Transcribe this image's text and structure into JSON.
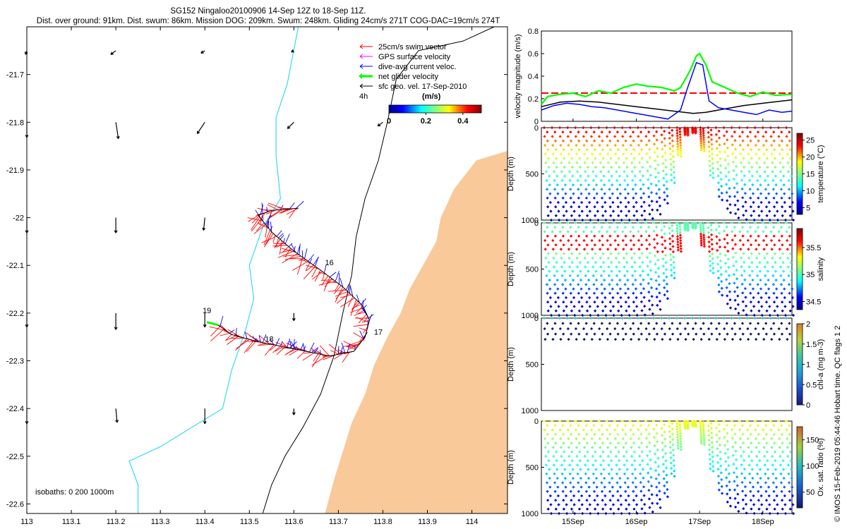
{
  "header": {
    "line1": "SG152 Ningaloo20100906 14-Sep 12Z to 18-Sep 11Z.",
    "line2": "Dist. over ground: 91km. Dist. swum: 86km. Mission DOG: 209km. Swum: 248km. Gliding 24cm/s 271T COG-DAC=19cm/s 274T"
  },
  "colors": {
    "land": "#f9c99a",
    "isobath_200": "#22d8f0",
    "isobath_1000": "#000000",
    "swim": "#ff0000",
    "gps": "#ff00ff",
    "dac": "#0000ff",
    "net": "#00ff00",
    "ref_line": "#ff0000",
    "speed_line": "#000000"
  },
  "chart_data": [
    {
      "type": "scatter",
      "title": "Glider track map",
      "x_ticks": [
        "113",
        "113.1",
        "113.2",
        "113.3",
        "113.4",
        "113.5",
        "113.6",
        "113.7",
        "113.8",
        "113.9",
        "114"
      ],
      "y_ticks": [
        "-21.7",
        "-21.8",
        "-21.9",
        "-22",
        "-22.1",
        "-22.2",
        "-22.3",
        "-22.4",
        "-22.5",
        "-22.6"
      ],
      "xlim": [
        113.0,
        114.08
      ],
      "ylim": [
        -22.62,
        -21.6
      ],
      "legend": [
        {
          "label": "25cm/s swim vector",
          "color": "swim"
        },
        {
          "label": "GPS surface velocity",
          "color": "gps"
        },
        {
          "label": "dive-avg current veloc.",
          "color": "dac"
        },
        {
          "label": "net glider velocity",
          "color": "net"
        },
        {
          "label": "sfc geo. vel. 17-Sep-2010",
          "color": "speed_line"
        }
      ],
      "legend_extra": "4h",
      "colorbar": {
        "label": "(m/s)",
        "ticks": [
          "0",
          "0.2",
          "0.4"
        ],
        "range": [
          0,
          0.5
        ]
      },
      "isobaths_text": "isobaths: 0   200  1000m",
      "day_labels": [
        {
          "text": "16",
          "lon": 113.67,
          "lat": -22.1
        },
        {
          "text": "17",
          "lon": 113.78,
          "lat": -22.245
        },
        {
          "text": "18",
          "lon": 113.535,
          "lat": -22.26
        },
        {
          "text": "19",
          "lon": 113.395,
          "lat": -22.2
        }
      ],
      "track": [
        {
          "lon": 113.61,
          "lat": -21.98
        },
        {
          "lon": 113.55,
          "lat": -21.985
        },
        {
          "lon": 113.52,
          "lat": -21.995
        },
        {
          "lon": 113.55,
          "lat": -22.03
        },
        {
          "lon": 113.6,
          "lat": -22.07
        },
        {
          "lon": 113.66,
          "lat": -22.11
        },
        {
          "lon": 113.71,
          "lat": -22.145
        },
        {
          "lon": 113.755,
          "lat": -22.185
        },
        {
          "lon": 113.77,
          "lat": -22.215
        },
        {
          "lon": 113.76,
          "lat": -22.25
        },
        {
          "lon": 113.735,
          "lat": -22.28
        },
        {
          "lon": 113.68,
          "lat": -22.29
        },
        {
          "lon": 113.6,
          "lat": -22.275
        },
        {
          "lon": 113.52,
          "lat": -22.26
        },
        {
          "lon": 113.46,
          "lat": -22.245
        },
        {
          "lon": 113.43,
          "lat": -22.225
        }
      ],
      "geo_vectors": [
        {
          "lon": 113.0,
          "lat": -21.65,
          "u": -0.01,
          "v": -0.03
        },
        {
          "lon": 113.2,
          "lat": -21.65,
          "u": -0.04,
          "v": -0.03
        },
        {
          "lon": 113.4,
          "lat": -21.65,
          "u": -0.03,
          "v": -0.02
        },
        {
          "lon": 113.6,
          "lat": -21.65,
          "u": -0.02,
          "v": -0.01
        },
        {
          "lon": 113.0,
          "lat": -21.8,
          "u": 0.0,
          "v": -0.12
        },
        {
          "lon": 113.2,
          "lat": -21.8,
          "u": 0.02,
          "v": -0.13
        },
        {
          "lon": 113.4,
          "lat": -21.8,
          "u": -0.06,
          "v": -0.09
        },
        {
          "lon": 113.6,
          "lat": -21.8,
          "u": -0.05,
          "v": -0.05
        },
        {
          "lon": 113.8,
          "lat": -21.8,
          "u": -0.04,
          "v": -0.03
        },
        {
          "lon": 113.0,
          "lat": -22.0,
          "u": 0.0,
          "v": -0.12
        },
        {
          "lon": 113.2,
          "lat": -22.0,
          "u": 0.0,
          "v": -0.12
        },
        {
          "lon": 113.4,
          "lat": -22.0,
          "u": -0.01,
          "v": -0.1
        },
        {
          "lon": 113.0,
          "lat": -22.2,
          "u": 0.0,
          "v": -0.11
        },
        {
          "lon": 113.2,
          "lat": -22.2,
          "u": 0.0,
          "v": -0.13
        },
        {
          "lon": 113.4,
          "lat": -22.2,
          "u": 0.0,
          "v": -0.11
        },
        {
          "lon": 113.6,
          "lat": -22.2,
          "u": 0.0,
          "v": -0.06
        },
        {
          "lon": 113.0,
          "lat": -22.4,
          "u": 0.0,
          "v": -0.12
        },
        {
          "lon": 113.2,
          "lat": -22.4,
          "u": 0.01,
          "v": -0.11
        },
        {
          "lon": 113.4,
          "lat": -22.4,
          "u": 0.0,
          "v": -0.12
        },
        {
          "lon": 113.6,
          "lat": -22.4,
          "u": 0.0,
          "v": -0.05
        }
      ],
      "isobath_200": [
        {
          "lon": 113.61,
          "lat": -21.6
        },
        {
          "lon": 113.585,
          "lat": -21.72
        },
        {
          "lon": 113.56,
          "lat": -21.79
        },
        {
          "lon": 113.56,
          "lat": -21.87
        },
        {
          "lon": 113.57,
          "lat": -21.96
        },
        {
          "lon": 113.53,
          "lat": -22.02
        },
        {
          "lon": 113.5,
          "lat": -22.1
        },
        {
          "lon": 113.51,
          "lat": -22.17
        },
        {
          "lon": 113.49,
          "lat": -22.24
        },
        {
          "lon": 113.46,
          "lat": -22.32
        },
        {
          "lon": 113.44,
          "lat": -22.4
        },
        {
          "lon": 113.37,
          "lat": -22.44
        },
        {
          "lon": 113.3,
          "lat": -22.48
        },
        {
          "lon": 113.23,
          "lat": -22.51
        },
        {
          "lon": 113.25,
          "lat": -22.56
        },
        {
          "lon": 113.25,
          "lat": -22.62
        }
      ],
      "isobath_1000": [
        {
          "lon": 114.05,
          "lat": -21.6
        },
        {
          "lon": 113.98,
          "lat": -21.63
        },
        {
          "lon": 113.88,
          "lat": -21.65
        },
        {
          "lon": 113.83,
          "lat": -21.71
        },
        {
          "lon": 113.81,
          "lat": -21.8
        },
        {
          "lon": 113.79,
          "lat": -21.88
        },
        {
          "lon": 113.76,
          "lat": -21.96
        },
        {
          "lon": 113.74,
          "lat": -22.04
        },
        {
          "lon": 113.73,
          "lat": -22.12
        },
        {
          "lon": 113.71,
          "lat": -22.2
        },
        {
          "lon": 113.69,
          "lat": -22.29
        },
        {
          "lon": 113.66,
          "lat": -22.37
        },
        {
          "lon": 113.62,
          "lat": -22.44
        },
        {
          "lon": 113.58,
          "lat": -22.5
        },
        {
          "lon": 113.55,
          "lat": -22.56
        },
        {
          "lon": 113.53,
          "lat": -22.62
        }
      ],
      "coast": [
        {
          "lon": 114.08,
          "lat": -21.86
        },
        {
          "lon": 114.01,
          "lat": -21.88
        },
        {
          "lon": 113.96,
          "lat": -21.94
        },
        {
          "lon": 113.93,
          "lat": -22.0
        },
        {
          "lon": 113.92,
          "lat": -22.05
        },
        {
          "lon": 113.89,
          "lat": -22.1
        },
        {
          "lon": 113.86,
          "lat": -22.15
        },
        {
          "lon": 113.84,
          "lat": -22.2
        },
        {
          "lon": 113.81,
          "lat": -22.25
        },
        {
          "lon": 113.78,
          "lat": -22.31
        },
        {
          "lon": 113.76,
          "lat": -22.37
        },
        {
          "lon": 113.73,
          "lat": -22.43
        },
        {
          "lon": 113.71,
          "lat": -22.49
        },
        {
          "lon": 113.69,
          "lat": -22.55
        },
        {
          "lon": 113.67,
          "lat": -22.62
        }
      ]
    },
    {
      "type": "line",
      "ylabel": "velocity magnitude (m/s)",
      "ylim": [
        0,
        0.8
      ],
      "y_ticks": [
        "0",
        "0.2",
        "0.4",
        "0.6",
        "0.8"
      ],
      "x_range_days": [
        14.5,
        18.46
      ],
      "reference_value": 0.25,
      "series": [
        {
          "name": "dive-avg current",
          "color": "dac",
          "x": [
            14.5,
            14.7,
            14.9,
            15.1,
            15.3,
            15.5,
            15.7,
            15.9,
            16.1,
            16.3,
            16.5,
            16.7,
            16.8,
            16.95,
            17.05,
            17.15,
            17.3,
            17.5,
            17.7,
            17.9,
            18.1,
            18.3,
            18.46
          ],
          "values": [
            0.1,
            0.14,
            0.16,
            0.15,
            0.13,
            0.12,
            0.1,
            0.08,
            0.06,
            0.04,
            0.02,
            0.1,
            0.28,
            0.52,
            0.5,
            0.18,
            0.12,
            0.1,
            0.08,
            0.06,
            0.1,
            0.08,
            0.09
          ]
        },
        {
          "name": "net glider velocity",
          "color": "net",
          "x": [
            14.5,
            14.6,
            14.8,
            15.0,
            15.2,
            15.4,
            15.6,
            15.8,
            16.0,
            16.2,
            16.4,
            16.6,
            16.7,
            16.85,
            16.95,
            17.0,
            17.1,
            17.2,
            17.4,
            17.6,
            17.8,
            18.0,
            18.2,
            18.46
          ],
          "values": [
            0.15,
            0.22,
            0.24,
            0.25,
            0.22,
            0.27,
            0.25,
            0.3,
            0.33,
            0.31,
            0.3,
            0.27,
            0.3,
            0.45,
            0.58,
            0.6,
            0.5,
            0.35,
            0.3,
            0.25,
            0.22,
            0.26,
            0.23,
            0.24
          ]
        },
        {
          "name": "sfc geo. vel.",
          "color": "speed_line",
          "x": [
            14.5,
            14.8,
            15.1,
            15.4,
            15.7,
            16.0,
            16.3,
            16.6,
            16.9,
            17.1,
            17.4,
            17.7,
            18.0,
            18.3,
            18.46
          ],
          "values": [
            0.13,
            0.17,
            0.18,
            0.17,
            0.15,
            0.13,
            0.11,
            0.09,
            0.07,
            0.08,
            0.11,
            0.14,
            0.16,
            0.18,
            0.19
          ]
        }
      ]
    },
    {
      "type": "scatter",
      "ylabel": "Depth (m)",
      "cbar_label": "temperature (°C)",
      "ylim": [
        0,
        1000
      ],
      "y_ticks": [
        "0",
        "500",
        "1000"
      ],
      "cbar_ticks": [
        "5",
        "10",
        "15",
        "20",
        "25"
      ],
      "cbar_range": [
        3,
        27
      ],
      "profile_max_depth": 1000,
      "surface_value": 26,
      "deep_value": 4
    },
    {
      "type": "scatter",
      "ylabel": "Depth (m)",
      "cbar_label": "salinity",
      "ylim": [
        0,
        1000
      ],
      "y_ticks": [
        "0",
        "500",
        "1000"
      ],
      "cbar_ticks": [
        "34.5",
        "35",
        "35.5"
      ],
      "cbar_range": [
        34.35,
        35.85
      ],
      "profile_max_depth": 1000
    },
    {
      "type": "scatter",
      "ylabel": "Depth (m)",
      "cbar_label": "chl-a (mg m-3)",
      "ylim": [
        0,
        1000
      ],
      "y_ticks": [
        "0",
        "500",
        "1000"
      ],
      "cbar_ticks": [
        "0",
        "0.5",
        "1",
        "1.5",
        "2"
      ],
      "cbar_range": [
        0,
        2
      ],
      "profile_max_depth": 230
    },
    {
      "type": "scatter",
      "ylabel": "Depth (m)",
      "cbar_label": "Ox. sat. ratio (%)",
      "ylim": [
        0,
        1000
      ],
      "y_ticks": [
        "0",
        "500",
        "1000"
      ],
      "cbar_ticks": [
        "50",
        "100",
        "150"
      ],
      "cbar_range": [
        20,
        175
      ],
      "profile_max_depth": 1000,
      "x_ticks": [
        "15Sep",
        "16Sep",
        "17Sep",
        "18Sep"
      ]
    }
  ],
  "side_note": "© IMOS 15-Feb-2019 05:44:46 Hobart time. QC flags 1  2"
}
